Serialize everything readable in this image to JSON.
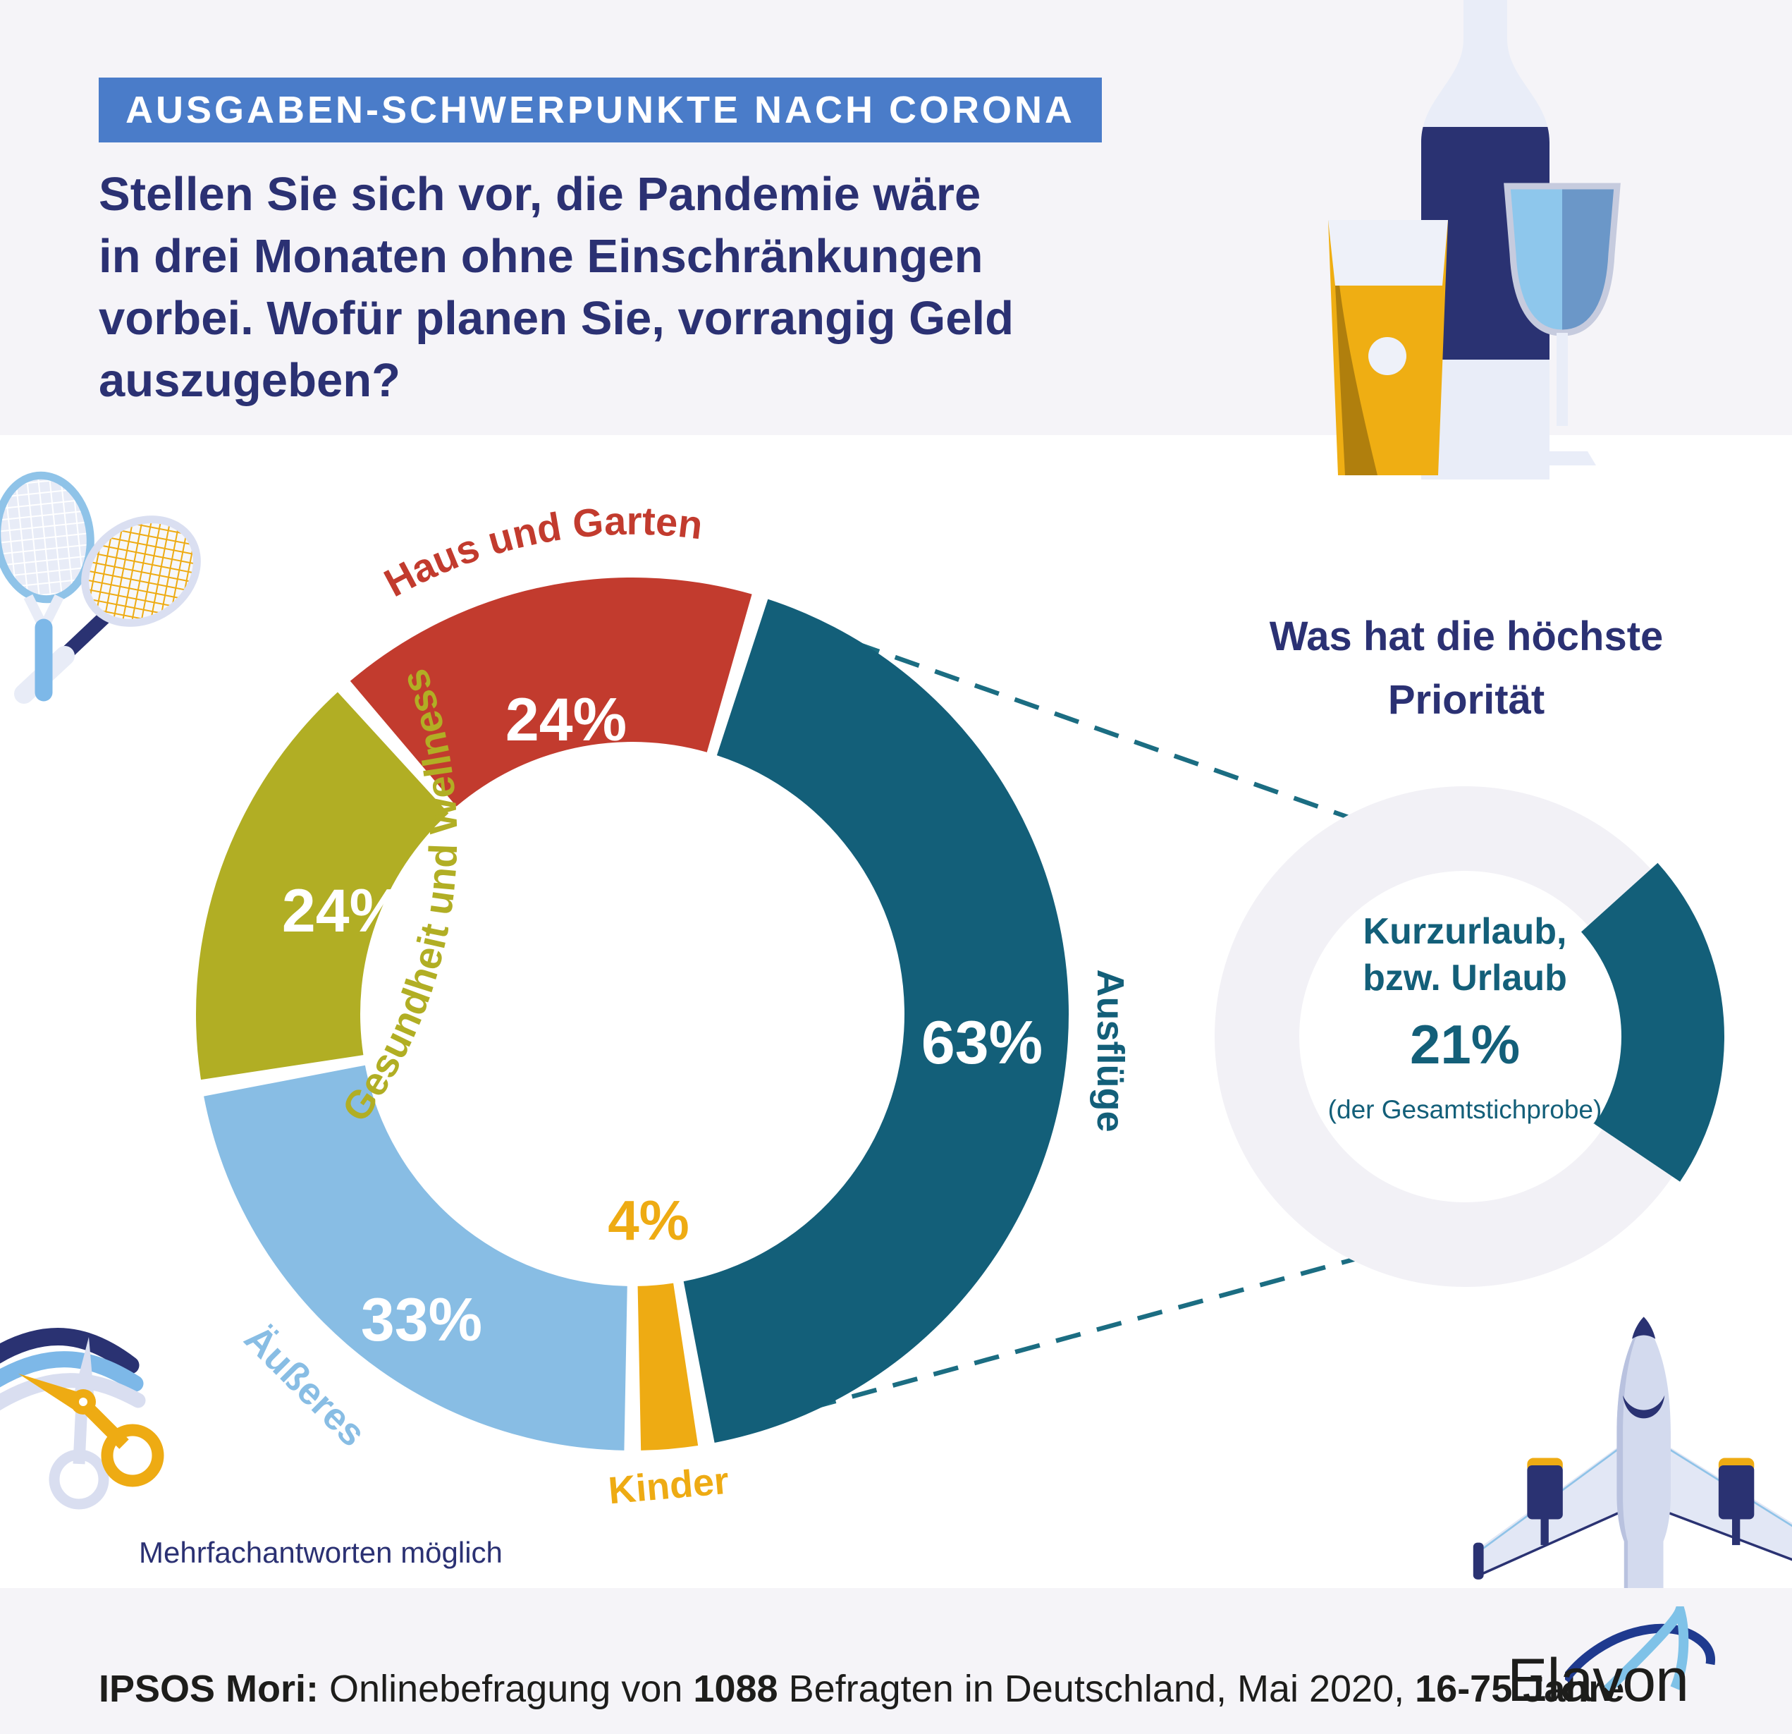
{
  "header": {
    "badge": "AUSGABEN-SCHWERPUNKTE NACH CORONA",
    "badge_color": "#4a7cc9",
    "title": "Stellen Sie sich vor, die Pandemie wäre\nin drei Monaten ohne Einschränkungen\nvorbei. Wofür planen Sie, vorrangig Geld\nauszugeben?",
    "title_color": "#2b3173"
  },
  "chart_data": [
    {
      "type": "donut",
      "title": "Wofür planen Sie, vorrangig Geld auszugeben?",
      "unit": "%",
      "multi_response_note": "Mehrfachantworten möglich",
      "start_angle_deg": 17,
      "series": [
        {
          "name": "Ausflüge",
          "value": 63,
          "value_label": "63%",
          "color": "#135f79"
        },
        {
          "name": "Kinder",
          "value": 4,
          "value_label": "4%",
          "color": "#eeab13"
        },
        {
          "name": "Äußeres",
          "value": 33,
          "value_label": "33%",
          "color": "#88bde4"
        },
        {
          "name": "Gesundheit und Wellness",
          "value": 24,
          "value_label": "24%",
          "color": "#b1ae24"
        },
        {
          "name": "Haus und Garten",
          "value": 24,
          "value_label": "24%",
          "color": "#c23b2e"
        }
      ]
    },
    {
      "type": "donut",
      "title": "Was hat die höchste\nPriorität",
      "ring_color": "#f2f1f6",
      "angles": [
        48,
        124
      ],
      "highlight": {
        "label": "Kurzurlaub,\nbzw. Urlaub",
        "value": 21,
        "value_label": "21%",
        "note": "(der Gesamtstichprobe)",
        "color": "#135f79"
      }
    }
  ],
  "footer": {
    "p1": "IPSOS Mori:",
    "p2": " Onlinebefragung von ",
    "p3": "1088",
    "p4": " Befragten in Deutschland, Mai 2020, ",
    "p5": "16-75 Jahre",
    "logo": "Elavon"
  },
  "icons": {
    "drinks": "drinks-illustration",
    "tennis": "tennis-rackets-illustration",
    "scissors": "scissors-illustration",
    "airplane": "airplane-illustration",
    "logo_swoosh": "elavon-swoosh-icon"
  },
  "colors": {
    "band": "#f5f4f8",
    "navy": "#2a3272",
    "teal": "#135f79",
    "red": "#c23b2e",
    "olive": "#b1ae24",
    "light_blue": "#88bde4",
    "gold": "#eeab13",
    "dash": "#1b6d82"
  }
}
